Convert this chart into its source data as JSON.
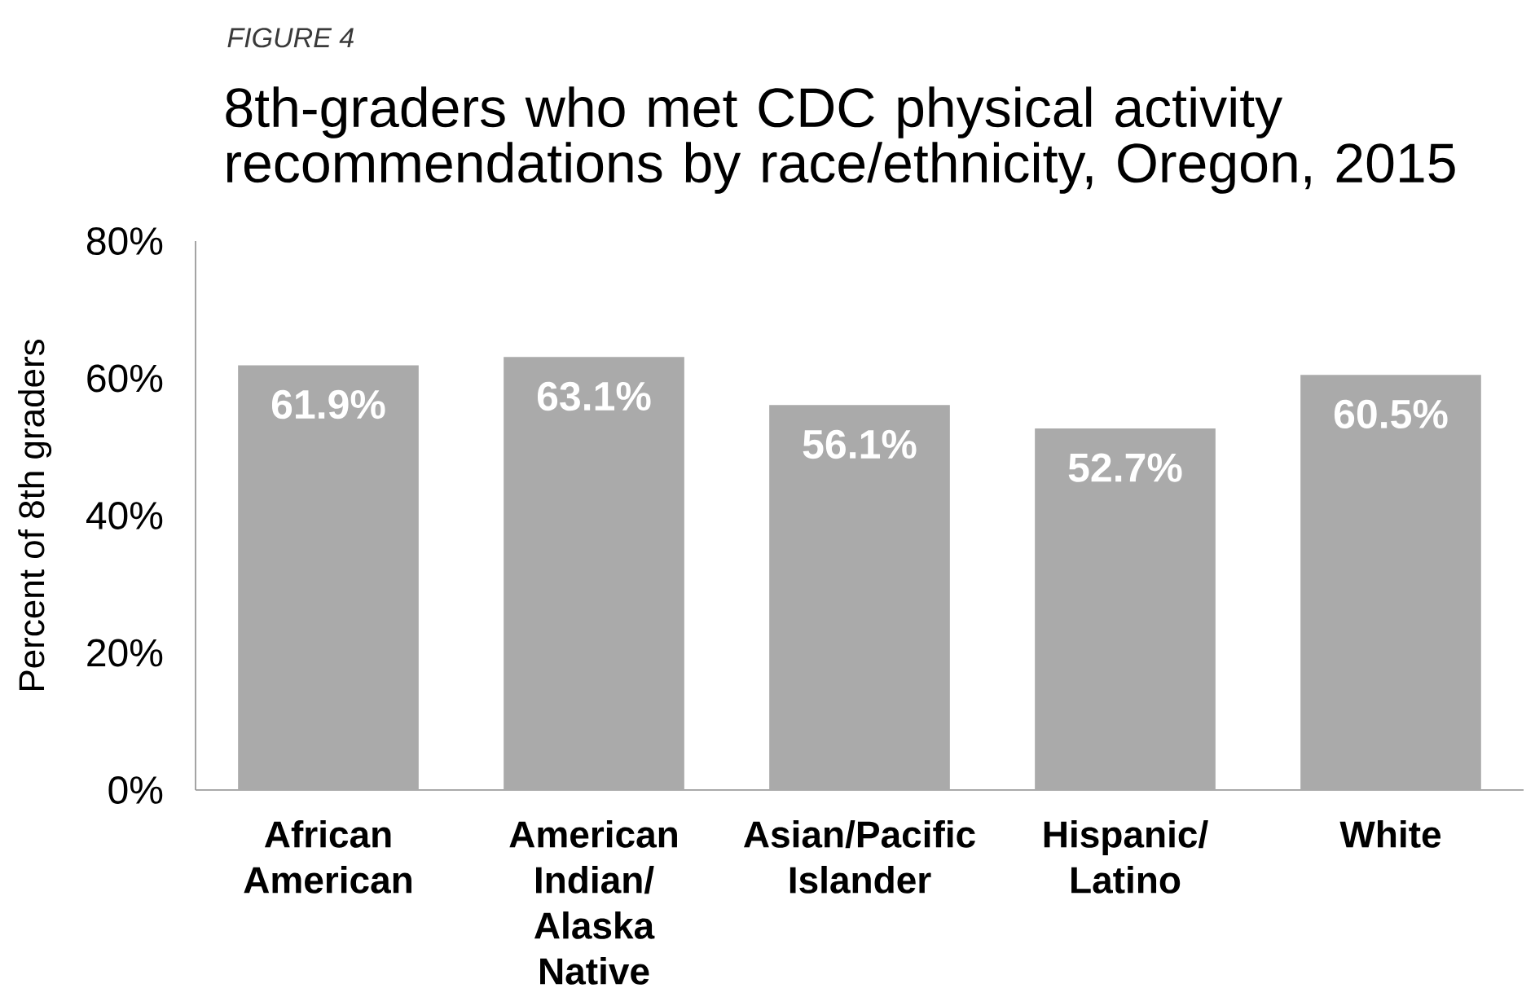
{
  "chart_data": {
    "type": "bar",
    "annotations": [
      "FIGURE 4"
    ],
    "title": "8th-graders who met CDC physical activity recommendations by race/ethnicity, Oregon, 2015",
    "ylabel": "Percent of 8th graders",
    "categories": [
      "African American",
      "American Indian/Alaska Native",
      "Asian/Pacific Islander",
      "Hispanic/Latino",
      "White"
    ],
    "values": [
      61.9,
      63.1,
      56.1,
      52.7,
      60.5
    ],
    "value_labels": [
      "61.9%",
      "63.1%",
      "56.1%",
      "52.7%",
      "60.5%"
    ],
    "color": "#aaaaaa",
    "ylim": [
      0,
      80
    ],
    "yticks": [
      {
        "value": 0,
        "label": "0%"
      },
      {
        "value": 20,
        "label": "20%"
      },
      {
        "value": 40,
        "label": "40%"
      },
      {
        "value": 60,
        "label": "60%"
      },
      {
        "value": 80,
        "label": "80%"
      }
    ]
  }
}
